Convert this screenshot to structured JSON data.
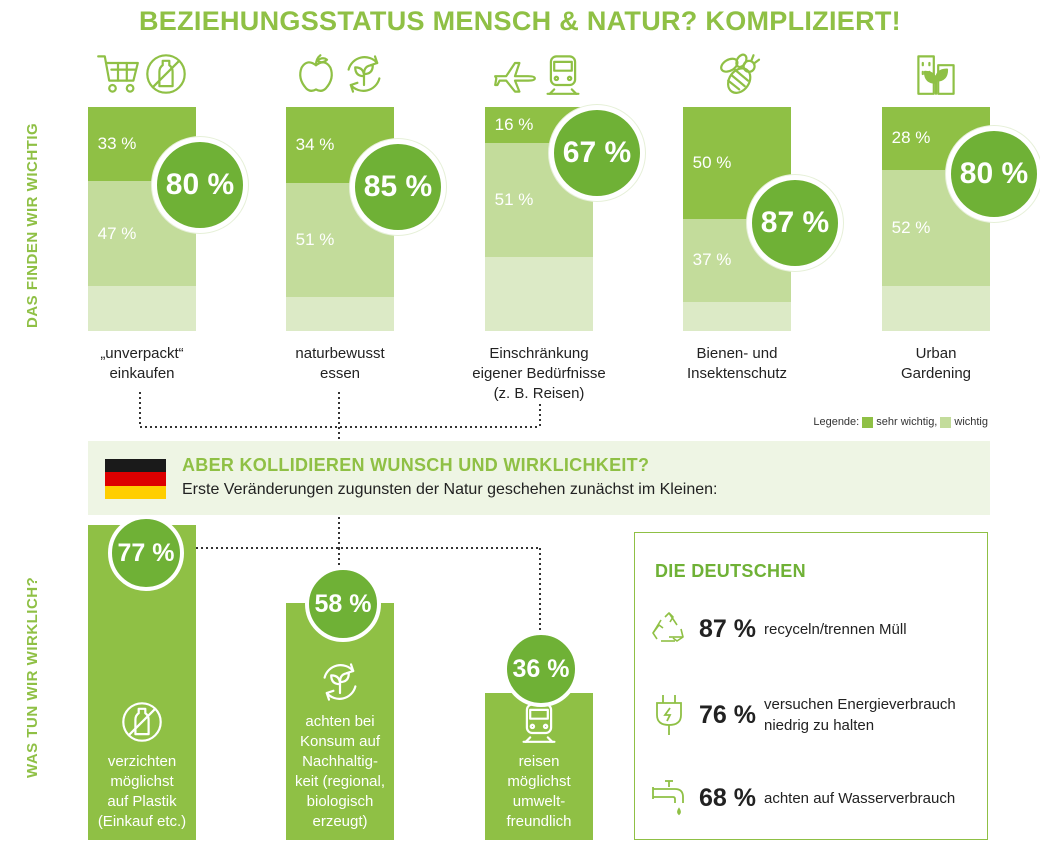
{
  "title": "BEZIEHUNGSSTATUS MENSCH & NATUR? KOMPLIZIERT!",
  "side_label_top": "DAS FINDEN WIR WICHTIG",
  "side_label_bottom": "WAS TUN WIR WIRKLICH?",
  "legend": {
    "prefix": "Legende:",
    "items": [
      {
        "label": "sehr wichtig,",
        "color": "#8fc045"
      },
      {
        "label": "wichtig",
        "color": "#c3dc9b"
      }
    ]
  },
  "colors": {
    "dark": "#8fc045",
    "light": "#c3dc9b",
    "pale": "#dceac6",
    "circle": "#6fb136",
    "banner": "#eef5e4"
  },
  "chart_data": [
    {
      "type": "bar",
      "stacked": true,
      "categories": [
        "„unverpackt“ einkaufen",
        "naturbewusst essen",
        "Einschränkung eigener Bedürfnisse (z. B. Reisen)",
        "Bienen- und Insektenschutz",
        "Urban Gardening"
      ],
      "series": [
        {
          "name": "sehr wichtig",
          "values": [
            33,
            34,
            16,
            50,
            28
          ]
        },
        {
          "name": "wichtig",
          "values": [
            47,
            51,
            51,
            37,
            52
          ]
        }
      ],
      "totals": [
        80,
        85,
        67,
        87,
        80
      ],
      "ylim": [
        0,
        100
      ]
    },
    {
      "type": "bar",
      "categories": [
        "verzichten möglichst auf Plastik (Einkauf etc.)",
        "achten bei Konsum auf Nachhaltigkeit (regional, biologisch erzeugt)",
        "reisen möglichst umweltfreundlich"
      ],
      "values": [
        77,
        58,
        36
      ],
      "ylim": [
        0,
        100
      ]
    }
  ],
  "top_bars": [
    {
      "label_lines": [
        "„unverpackt“",
        "einkaufen"
      ],
      "dark_label": "33 %",
      "light_label": "47 %",
      "total_label": "80 %",
      "icons": [
        "shopping-cart-icon",
        "no-plastic-bottle-icon"
      ]
    },
    {
      "label_lines": [
        "naturbewusst",
        "essen"
      ],
      "dark_label": "34 %",
      "light_label": "51 %",
      "total_label": "85 %",
      "icons": [
        "apple-icon",
        "recycle-leaf-icon"
      ]
    },
    {
      "label_lines": [
        "Einschränkung",
        "eigener Bedürfnisse",
        "(z. B. Reisen)"
      ],
      "dark_label": "16 %",
      "light_label": "51 %",
      "total_label": "67 %",
      "icons": [
        "airplane-icon",
        "train-icon"
      ]
    },
    {
      "label_lines": [
        "Bienen- und",
        "Insektenschutz"
      ],
      "dark_label": "50 %",
      "light_label": "37 %",
      "total_label": "87 %",
      "icons": [
        "bee-icon"
      ]
    },
    {
      "label_lines": [
        "Urban",
        "Gardening"
      ],
      "dark_label": "28 %",
      "light_label": "52 %",
      "total_label": "80 %",
      "icons": [
        "city-plant-icon"
      ]
    }
  ],
  "banner": {
    "heading": "ABER KOLLIDIEREN WUNSCH UND WIRKLICHKEIT?",
    "subheading": "Erste Veränderungen zugunsten der Natur geschehen zunächst im Kleinen:",
    "flag_colors": [
      "#1a1a1a",
      "#dd0000",
      "#ffce00"
    ]
  },
  "bottom_bars": [
    {
      "total_label": "77 %",
      "label_lines": [
        "verzichten",
        "möglichst",
        "auf Plastik",
        "(Einkauf etc.)"
      ],
      "icon": "no-plastic-bottle-icon"
    },
    {
      "total_label": "58 %",
      "label_lines": [
        "achten bei",
        "Konsum auf",
        "Nachhaltig-",
        "keit (regional,",
        "biologisch",
        "erzeugt)"
      ],
      "icon": "recycle-leaf-icon"
    },
    {
      "total_label": "36 %",
      "label_lines": [
        "reisen",
        "möglichst",
        "umwelt-",
        "freundlich"
      ],
      "icon": "train-icon"
    }
  ],
  "box": {
    "title": "DIE DEUTSCHEN",
    "stats": [
      {
        "icon": "recycle-icon",
        "value": "87 %",
        "text_lines": [
          "recyceln/trennen Müll"
        ]
      },
      {
        "icon": "plug-icon",
        "value": "76 %",
        "text_lines": [
          "versuchen Energieverbrauch",
          "niedrig zu halten"
        ]
      },
      {
        "icon": "faucet-icon",
        "value": "68 %",
        "text_lines": [
          "achten auf Wasserverbrauch"
        ]
      }
    ]
  }
}
